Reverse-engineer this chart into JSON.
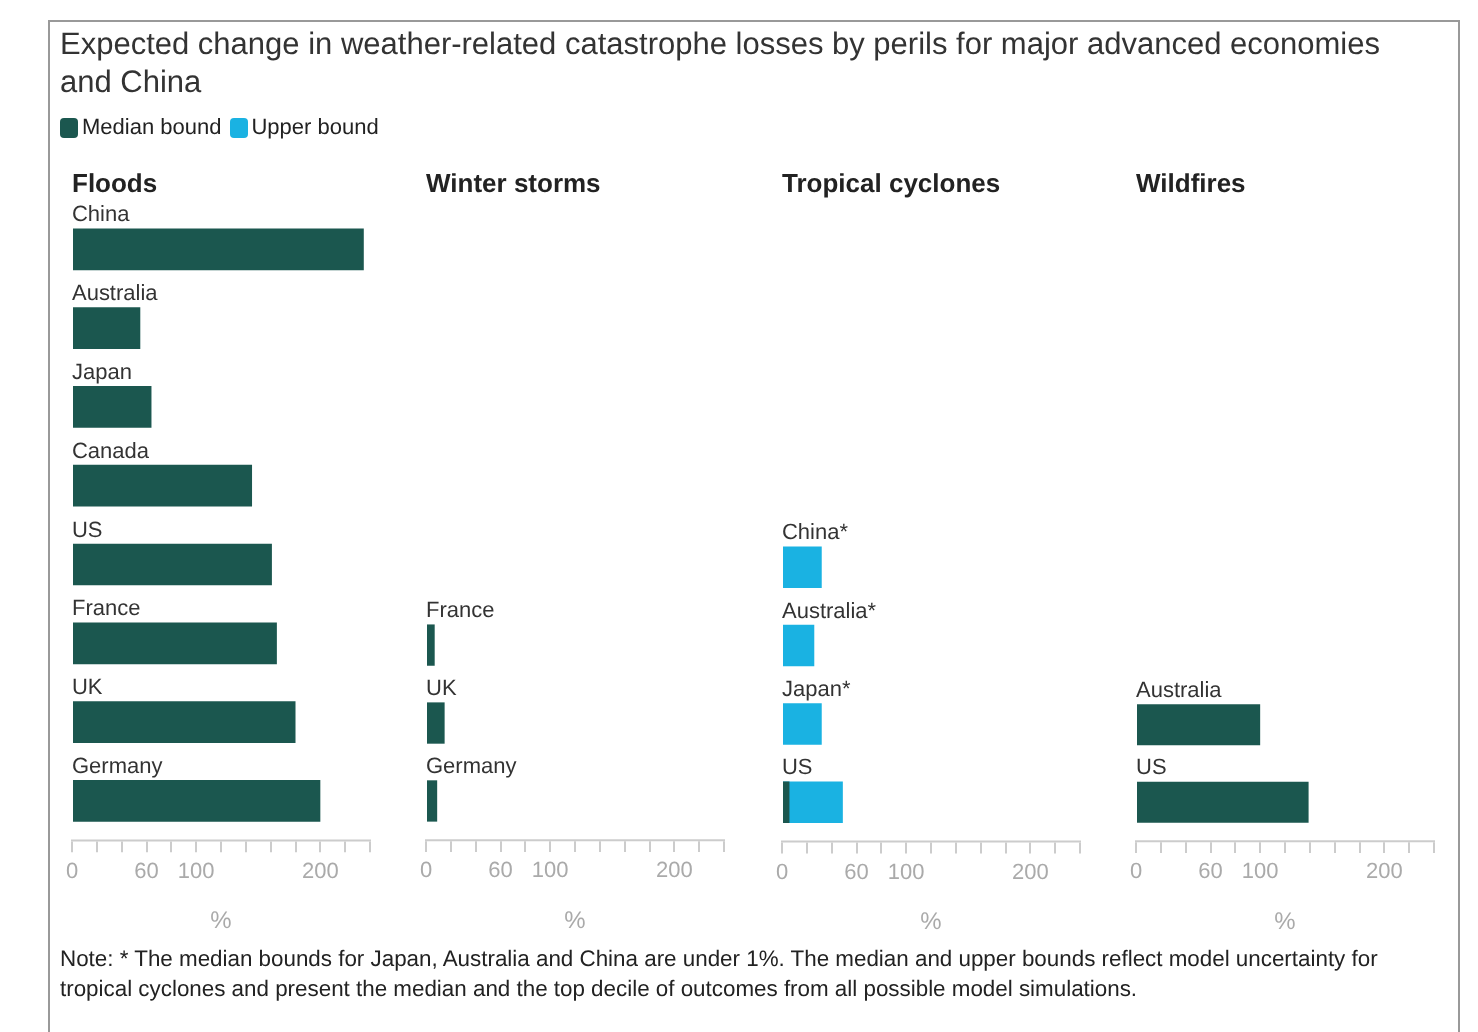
{
  "chart_data": [
    {
      "type": "other",
      "title": "Expected change in weather-related catastrophe losses by perils for major advanced economies and China"
    },
    {
      "type": "bar",
      "orientation": "horizontal",
      "title": "Floods",
      "xlabel": "%",
      "categories": [
        "China",
        "Australia",
        "Japan",
        "Canada",
        "US",
        "France",
        "UK",
        "Germany"
      ],
      "series": [
        {
          "color": "#1b574f",
          "values": [
            235,
            55,
            64,
            145,
            161,
            165,
            180,
            200
          ]
        }
      ],
      "xlim": [
        0,
        240
      ],
      "xticks": [
        0,
        {
          "value": 20,
          "label": null
        },
        {
          "value": 40,
          "label": null
        },
        60,
        {
          "value": 80,
          "label": null
        },
        100,
        {
          "value": 120,
          "label": null
        },
        {
          "value": 140,
          "label": null
        },
        {
          "value": 160,
          "label": null
        },
        {
          "value": 180,
          "label": null
        },
        200,
        {
          "value": 220,
          "label": null
        },
        {
          "value": 240,
          "label": null
        }
      ]
    },
    {
      "type": "bar",
      "orientation": "horizontal",
      "title": "Winter storms",
      "xlabel": "%",
      "categories": [
        "France",
        "UK",
        "Germany"
      ],
      "series": [
        {
          "color": "#1b574f",
          "values": [
            7,
            15,
            9
          ]
        }
      ],
      "xlim": [
        0,
        240
      ],
      "xticks": [
        0,
        {
          "value": 20,
          "label": null
        },
        {
          "value": 40,
          "label": null
        },
        60,
        {
          "value": 80,
          "label": null
        },
        100,
        {
          "value": 120,
          "label": null
        },
        {
          "value": 140,
          "label": null
        },
        {
          "value": 160,
          "label": null
        },
        {
          "value": 180,
          "label": null
        },
        200,
        {
          "value": 220,
          "label": null
        },
        {
          "value": 240,
          "label": null
        }
      ]
    },
    {
      "type": "bar",
      "orientation": "horizontal",
      "title": "Tropical cyclones",
      "xlabel": "%",
      "legend": "top",
      "categories": [
        "China*",
        "Australia*",
        "Japan*",
        "US"
      ],
      "series": [
        {
          "name": "Median bound",
          "color": "#1b574f",
          "values": [
            null,
            null,
            null,
            6
          ]
        },
        {
          "name": "Upper bound",
          "color": "#1ab2e2",
          "values": [
            32,
            26,
            32,
            49
          ]
        }
      ],
      "xlim": [
        0,
        240
      ],
      "xticks": [
        0,
        {
          "value": 20,
          "label": null
        },
        {
          "value": 40,
          "label": null
        },
        60,
        {
          "value": 80,
          "label": null
        },
        100,
        {
          "value": 120,
          "label": null
        },
        {
          "value": 140,
          "label": null
        },
        {
          "value": 160,
          "label": null
        },
        {
          "value": 180,
          "label": null
        },
        200,
        {
          "value": 220,
          "label": null
        },
        {
          "value": 240,
          "label": null
        }
      ]
    },
    {
      "type": "bar",
      "orientation": "horizontal",
      "title": "Wildfires",
      "xlabel": "%",
      "categories": [
        "Australia",
        "US"
      ],
      "series": [
        {
          "color": "#1b574f",
          "values": [
            100,
            139
          ]
        }
      ],
      "xlim": [
        0,
        240
      ],
      "xticks": [
        0,
        {
          "value": 20,
          "label": null
        },
        {
          "value": 40,
          "label": null
        },
        60,
        {
          "value": 80,
          "label": null
        },
        100,
        {
          "value": 120,
          "label": null
        },
        {
          "value": 140,
          "label": null
        },
        {
          "value": 160,
          "label": null
        },
        {
          "value": 180,
          "label": null
        },
        200,
        {
          "value": 220,
          "label": null
        },
        {
          "value": 240,
          "label": null
        }
      ]
    },
    {
      "type": "other",
      "annotations": [
        "Note: * The median bounds for Japan, Australia and China are under 1%. The median and upper bounds reflect model uncertainty for tropical cyclones and present the median and the top decile of outcomes from all possible model simulations."
      ]
    }
  ]
}
